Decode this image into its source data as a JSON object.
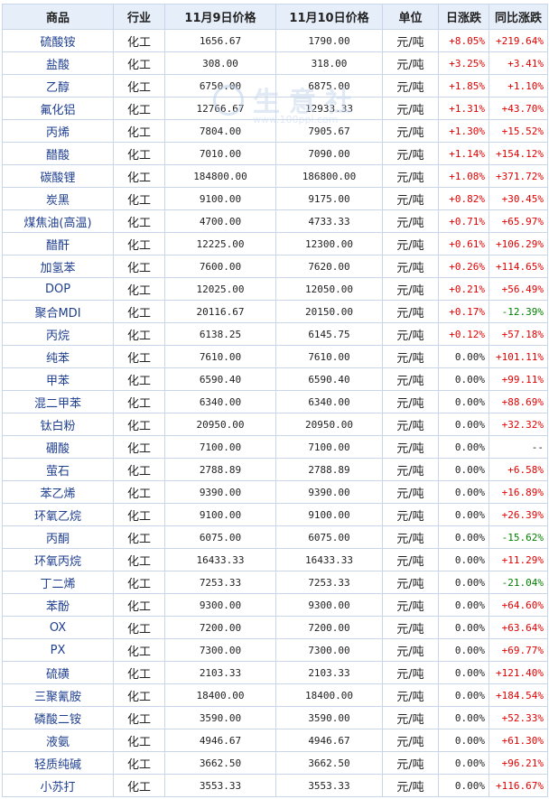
{
  "headers": [
    "商品",
    "行业",
    "11月9日价格",
    "11月10日价格",
    "单位",
    "日涨跌",
    "同比涨跌"
  ],
  "watermark": {
    "text": "生意社",
    "url": "www.100ppi.com"
  },
  "colors": {
    "up": "#e00000",
    "down": "#008000",
    "header_bg": "#e6eef9",
    "border": "#c9d6ea",
    "name": "#1f3f8f"
  },
  "rows": [
    {
      "name": "硫酸铵",
      "industry": "化工",
      "price_nov9": "1656.67",
      "price_nov10": "1790.00",
      "unit": "元/吨",
      "daily_change": "+8.05%",
      "yoy_change": "+219.64%"
    },
    {
      "name": "盐酸",
      "industry": "化工",
      "price_nov9": "308.00",
      "price_nov10": "318.00",
      "unit": "元/吨",
      "daily_change": "+3.25%",
      "yoy_change": "+3.41%"
    },
    {
      "name": "乙醇",
      "industry": "化工",
      "price_nov9": "6750.00",
      "price_nov10": "6875.00",
      "unit": "元/吨",
      "daily_change": "+1.85%",
      "yoy_change": "+1.10%"
    },
    {
      "name": "氟化铝",
      "industry": "化工",
      "price_nov9": "12766.67",
      "price_nov10": "12933.33",
      "unit": "元/吨",
      "daily_change": "+1.31%",
      "yoy_change": "+43.70%"
    },
    {
      "name": "丙烯",
      "industry": "化工",
      "price_nov9": "7804.00",
      "price_nov10": "7905.67",
      "unit": "元/吨",
      "daily_change": "+1.30%",
      "yoy_change": "+15.52%"
    },
    {
      "name": "醋酸",
      "industry": "化工",
      "price_nov9": "7010.00",
      "price_nov10": "7090.00",
      "unit": "元/吨",
      "daily_change": "+1.14%",
      "yoy_change": "+154.12%"
    },
    {
      "name": "碳酸锂",
      "industry": "化工",
      "price_nov9": "184800.00",
      "price_nov10": "186800.00",
      "unit": "元/吨",
      "daily_change": "+1.08%",
      "yoy_change": "+371.72%"
    },
    {
      "name": "炭黑",
      "industry": "化工",
      "price_nov9": "9100.00",
      "price_nov10": "9175.00",
      "unit": "元/吨",
      "daily_change": "+0.82%",
      "yoy_change": "+30.45%"
    },
    {
      "name": "煤焦油(高温)",
      "industry": "化工",
      "price_nov9": "4700.00",
      "price_nov10": "4733.33",
      "unit": "元/吨",
      "daily_change": "+0.71%",
      "yoy_change": "+65.97%"
    },
    {
      "name": "醋酐",
      "industry": "化工",
      "price_nov9": "12225.00",
      "price_nov10": "12300.00",
      "unit": "元/吨",
      "daily_change": "+0.61%",
      "yoy_change": "+106.29%"
    },
    {
      "name": "加氢苯",
      "industry": "化工",
      "price_nov9": "7600.00",
      "price_nov10": "7620.00",
      "unit": "元/吨",
      "daily_change": "+0.26%",
      "yoy_change": "+114.65%"
    },
    {
      "name": "DOP",
      "industry": "化工",
      "price_nov9": "12025.00",
      "price_nov10": "12050.00",
      "unit": "元/吨",
      "daily_change": "+0.21%",
      "yoy_change": "+56.49%"
    },
    {
      "name": "聚合MDI",
      "industry": "化工",
      "price_nov9": "20116.67",
      "price_nov10": "20150.00",
      "unit": "元/吨",
      "daily_change": "+0.17%",
      "yoy_change": "-12.39%"
    },
    {
      "name": "丙烷",
      "industry": "化工",
      "price_nov9": "6138.25",
      "price_nov10": "6145.75",
      "unit": "元/吨",
      "daily_change": "+0.12%",
      "yoy_change": "+57.18%"
    },
    {
      "name": "纯苯",
      "industry": "化工",
      "price_nov9": "7610.00",
      "price_nov10": "7610.00",
      "unit": "元/吨",
      "daily_change": "0.00%",
      "yoy_change": "+101.11%"
    },
    {
      "name": "甲苯",
      "industry": "化工",
      "price_nov9": "6590.40",
      "price_nov10": "6590.40",
      "unit": "元/吨",
      "daily_change": "0.00%",
      "yoy_change": "+99.11%"
    },
    {
      "name": "混二甲苯",
      "industry": "化工",
      "price_nov9": "6340.00",
      "price_nov10": "6340.00",
      "unit": "元/吨",
      "daily_change": "0.00%",
      "yoy_change": "+88.69%"
    },
    {
      "name": "钛白粉",
      "industry": "化工",
      "price_nov9": "20950.00",
      "price_nov10": "20950.00",
      "unit": "元/吨",
      "daily_change": "0.00%",
      "yoy_change": "+32.32%"
    },
    {
      "name": "硼酸",
      "industry": "化工",
      "price_nov9": "7100.00",
      "price_nov10": "7100.00",
      "unit": "元/吨",
      "daily_change": "0.00%",
      "yoy_change": "--"
    },
    {
      "name": "萤石",
      "industry": "化工",
      "price_nov9": "2788.89",
      "price_nov10": "2788.89",
      "unit": "元/吨",
      "daily_change": "0.00%",
      "yoy_change": "+6.58%"
    },
    {
      "name": "苯乙烯",
      "industry": "化工",
      "price_nov9": "9390.00",
      "price_nov10": "9390.00",
      "unit": "元/吨",
      "daily_change": "0.00%",
      "yoy_change": "+16.89%"
    },
    {
      "name": "环氧乙烷",
      "industry": "化工",
      "price_nov9": "9100.00",
      "price_nov10": "9100.00",
      "unit": "元/吨",
      "daily_change": "0.00%",
      "yoy_change": "+26.39%"
    },
    {
      "name": "丙酮",
      "industry": "化工",
      "price_nov9": "6075.00",
      "price_nov10": "6075.00",
      "unit": "元/吨",
      "daily_change": "0.00%",
      "yoy_change": "-15.62%"
    },
    {
      "name": "环氧丙烷",
      "industry": "化工",
      "price_nov9": "16433.33",
      "price_nov10": "16433.33",
      "unit": "元/吨",
      "daily_change": "0.00%",
      "yoy_change": "+11.29%"
    },
    {
      "name": "丁二烯",
      "industry": "化工",
      "price_nov9": "7253.33",
      "price_nov10": "7253.33",
      "unit": "元/吨",
      "daily_change": "0.00%",
      "yoy_change": "-21.04%"
    },
    {
      "name": "苯酚",
      "industry": "化工",
      "price_nov9": "9300.00",
      "price_nov10": "9300.00",
      "unit": "元/吨",
      "daily_change": "0.00%",
      "yoy_change": "+64.60%"
    },
    {
      "name": "OX",
      "industry": "化工",
      "price_nov9": "7200.00",
      "price_nov10": "7200.00",
      "unit": "元/吨",
      "daily_change": "0.00%",
      "yoy_change": "+63.64%"
    },
    {
      "name": "PX",
      "industry": "化工",
      "price_nov9": "7300.00",
      "price_nov10": "7300.00",
      "unit": "元/吨",
      "daily_change": "0.00%",
      "yoy_change": "+69.77%"
    },
    {
      "name": "硫磺",
      "industry": "化工",
      "price_nov9": "2103.33",
      "price_nov10": "2103.33",
      "unit": "元/吨",
      "daily_change": "0.00%",
      "yoy_change": "+121.40%"
    },
    {
      "name": "三聚氰胺",
      "industry": "化工",
      "price_nov9": "18400.00",
      "price_nov10": "18400.00",
      "unit": "元/吨",
      "daily_change": "0.00%",
      "yoy_change": "+184.54%"
    },
    {
      "name": "磷酸二铵",
      "industry": "化工",
      "price_nov9": "3590.00",
      "price_nov10": "3590.00",
      "unit": "元/吨",
      "daily_change": "0.00%",
      "yoy_change": "+52.33%"
    },
    {
      "name": "液氨",
      "industry": "化工",
      "price_nov9": "4946.67",
      "price_nov10": "4946.67",
      "unit": "元/吨",
      "daily_change": "0.00%",
      "yoy_change": "+61.30%"
    },
    {
      "name": "轻质纯碱",
      "industry": "化工",
      "price_nov9": "3662.50",
      "price_nov10": "3662.50",
      "unit": "元/吨",
      "daily_change": "0.00%",
      "yoy_change": "+96.21%"
    },
    {
      "name": "小苏打",
      "industry": "化工",
      "price_nov9": "3553.33",
      "price_nov10": "3553.33",
      "unit": "元/吨",
      "daily_change": "0.00%",
      "yoy_change": "+116.67%"
    }
  ]
}
